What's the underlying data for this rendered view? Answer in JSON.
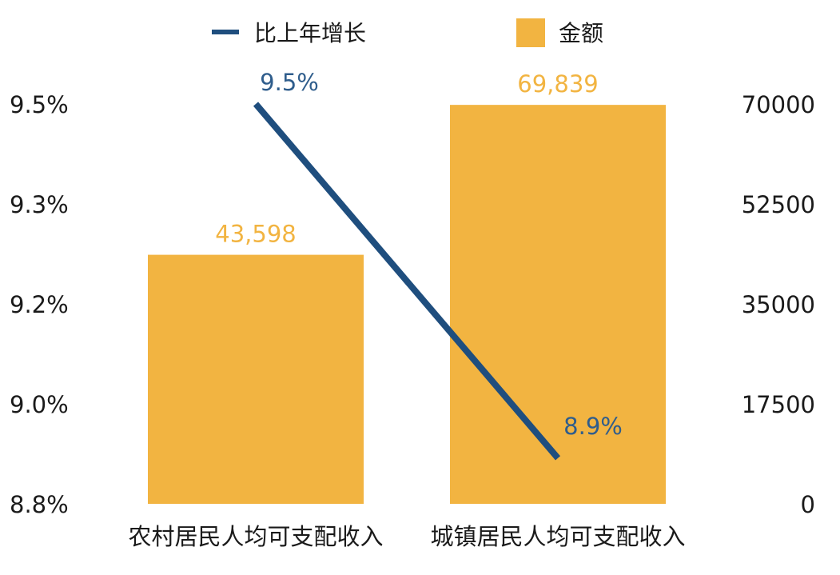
{
  "chart_data": {
    "type": "bar",
    "categories": [
      "农村居民人均可支配收入",
      "城镇居民人均可支配收入"
    ],
    "series": [
      {
        "name": "金额",
        "type": "bar",
        "axis": "right",
        "values": [
          43598,
          69839
        ],
        "value_labels": [
          "43,598",
          "69,839"
        ],
        "color": "#f2b441"
      },
      {
        "name": "比上年增长",
        "type": "line",
        "axis": "left",
        "values": [
          9.5,
          8.9
        ],
        "value_labels": [
          "9.5%",
          "8.9%"
        ],
        "color": "#1f4e7e"
      }
    ],
    "left_axis": {
      "ticks": [
        "9.5%",
        "9.3%",
        "9.2%",
        "9.0%",
        "8.8%"
      ],
      "ylim": [
        8.8,
        9.5
      ]
    },
    "right_axis": {
      "ticks": [
        "70000",
        "52500",
        "35000",
        "17500",
        "0"
      ],
      "ylim": [
        0,
        70000
      ]
    },
    "legend_position": "top",
    "grid": false,
    "colors": {
      "bar": "#f2b441",
      "bar_label": "#f2b441",
      "line": "#1f4e7e",
      "line_label": "#2f5d8c",
      "text": "#1a1a1a"
    }
  }
}
